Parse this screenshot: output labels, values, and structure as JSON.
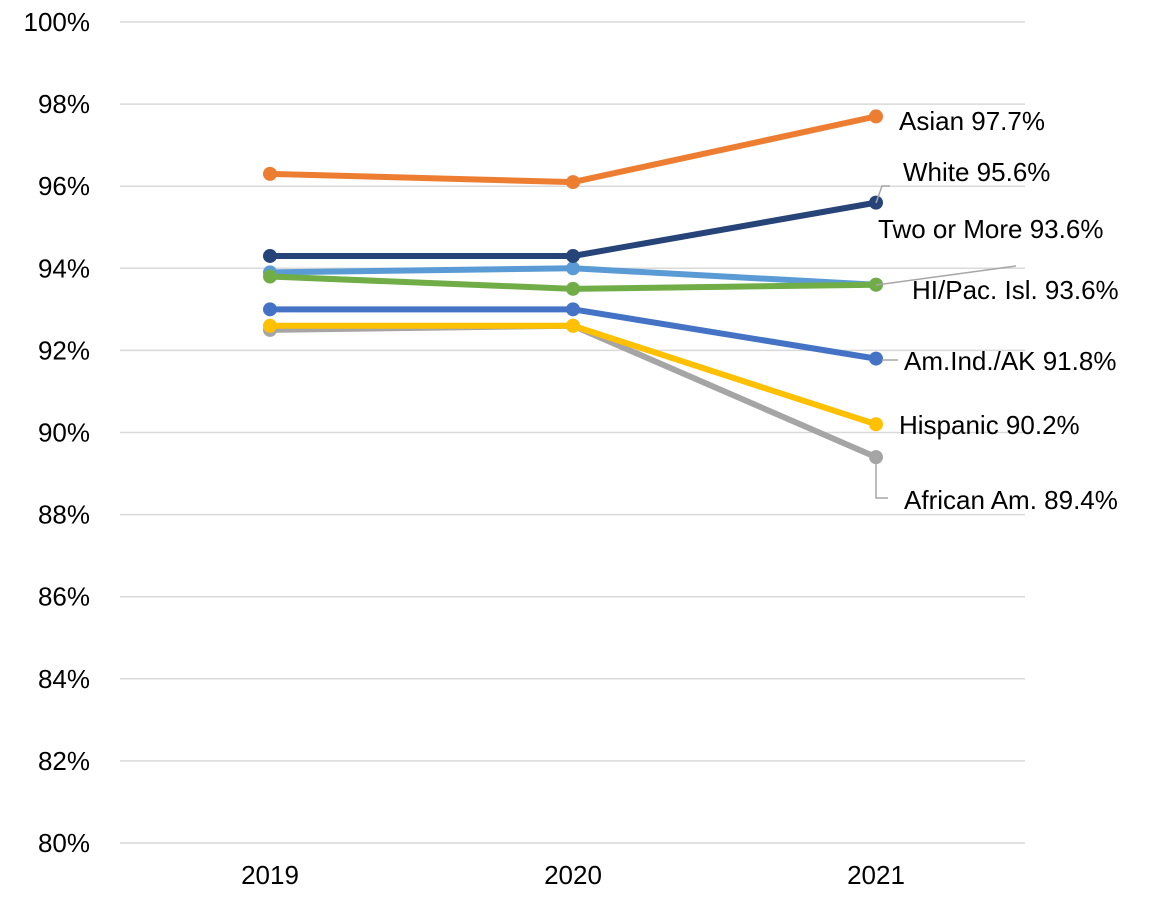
{
  "chart_data": {
    "type": "line",
    "title": "",
    "xlabel": "",
    "ylabel": "",
    "categories": [
      "2019",
      "2020",
      "2021"
    ],
    "ylim": [
      80,
      100
    ],
    "yticks": [
      80,
      82,
      84,
      86,
      88,
      90,
      92,
      94,
      96,
      98,
      100
    ],
    "ytick_labels": [
      "80%",
      "82%",
      "84%",
      "86%",
      "88%",
      "90%",
      "92%",
      "94%",
      "96%",
      "98%",
      "100%"
    ],
    "grid": true,
    "legend": "none (end-of-line data labels)",
    "series": [
      {
        "key": "african-am",
        "color": "#a5a5a5",
        "values": [
          92.5,
          92.6,
          89.4
        ],
        "label": "African Am. 89.4%"
      },
      {
        "key": "hispanic",
        "color": "#ffc000",
        "values": [
          92.6,
          92.6,
          90.2
        ],
        "label": "Hispanic 90.2%"
      },
      {
        "key": "am-ind-ak",
        "color": "#4472c4",
        "values": [
          93.0,
          93.0,
          91.8
        ],
        "label": "Am.Ind./AK 91.8%"
      },
      {
        "key": "two-or-more",
        "color": "#5b9bd5",
        "values": [
          93.9,
          94.0,
          93.6
        ],
        "label": "Two or More 93.6%"
      },
      {
        "key": "hi-pac-isl",
        "color": "#70ad47",
        "values": [
          93.8,
          93.5,
          93.6
        ],
        "label": "HI/Pac. Isl. 93.6%"
      },
      {
        "key": "white",
        "color": "#264478",
        "values": [
          94.3,
          94.3,
          95.6
        ],
        "label": "White 95.6%"
      },
      {
        "key": "asian",
        "color": "#ed7d31",
        "values": [
          96.3,
          96.1,
          97.7
        ],
        "label": "Asian 97.7%"
      }
    ]
  }
}
